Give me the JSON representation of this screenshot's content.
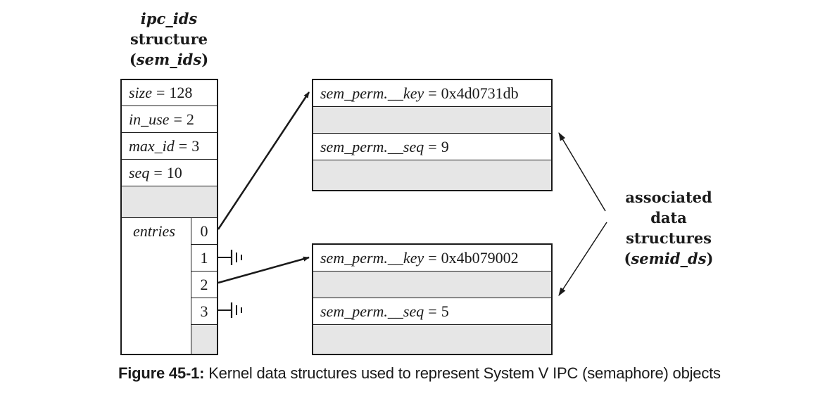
{
  "ipc_ids": {
    "title_name": "ipc_ids",
    "title_word": "structure",
    "title_sub_open": "(",
    "title_sub_name": "sem_ids",
    "title_sub_close": ")",
    "fields": [
      {
        "name": "size",
        "eq": "=",
        "value": "128"
      },
      {
        "name": "in_use",
        "eq": "=",
        "value": "2"
      },
      {
        "name": "max_id",
        "eq": "=",
        "value": "3"
      },
      {
        "name": "seq",
        "eq": "=",
        "value": "10"
      }
    ],
    "entries_label": "entries",
    "entry_indices": [
      "0",
      "1",
      "2",
      "3"
    ]
  },
  "semid_ds_top": {
    "key_name": "sem_perm.__key",
    "key_value": "0x4d0731db",
    "seq_name": "sem_perm.__seq",
    "seq_value": "9"
  },
  "semid_ds_bottom": {
    "key_name": "sem_perm.__key",
    "key_value": "0x4b079002",
    "seq_name": "sem_perm.__seq",
    "seq_value": "5"
  },
  "assoc_label": {
    "line1": "associated data",
    "line2": "structures",
    "line3_open": "(",
    "line3_name": "semid_ds",
    "line3_close": ")"
  },
  "caption": {
    "label": "Figure 45-1:",
    "text": " Kernel data structures used to represent System V IPC (semaphore) objects"
  },
  "colors": {
    "line": "#1a1a1a",
    "gray_fill": "#e6e6e6"
  }
}
